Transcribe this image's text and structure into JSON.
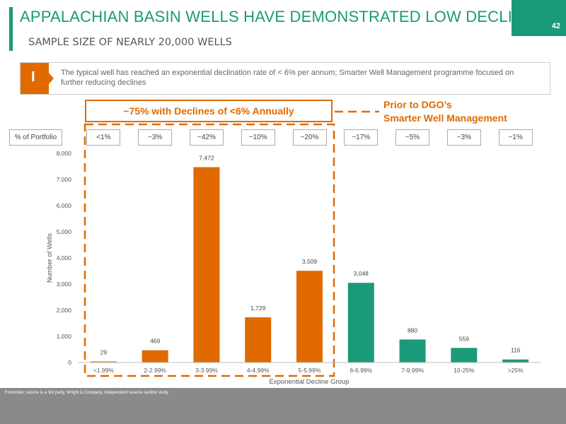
{
  "header": {
    "title": "APPALACHIAN BASIN WELLS HAVE DEMONSTRATED LOW DECLINES",
    "subtitle": "SAMPLE SIZE OF NEARLY 20,000 WELLS"
  },
  "callout": {
    "marker": "I",
    "text": "The typical well has reached an exponential declination rate of < 6% per annum; Smarter Well Management programme focused on further reducing declines"
  },
  "annotations": {
    "decline_box": "~75% with Declines of <6% Annually",
    "prior_line1": "Prior to DGO’s",
    "prior_line2": "Smarter Well Management"
  },
  "portfolio": {
    "label": "% of Portfolio",
    "values": [
      "<1%",
      "~3%",
      "~42%",
      "~10%",
      "~20%",
      "~17%",
      "~5%",
      "~3%",
      "~1%"
    ]
  },
  "colors": {
    "accent_green": "#1a9a78",
    "accent_orange": "#e06a00",
    "footer_grey": "#8a8a8a"
  },
  "chart_data": {
    "type": "bar",
    "categories": [
      "<1.99%",
      "2-2.99%",
      "3-3.99%",
      "4-4.99%",
      "5-5.99%",
      "6-6.99%",
      "7-9.99%",
      "10-25%",
      ">25%"
    ],
    "values": [
      29,
      469,
      7472,
      1729,
      3509,
      3048,
      880,
      559,
      116
    ],
    "value_labels": [
      "29",
      "469",
      "7,472",
      "1,729",
      "3,509",
      "3,048",
      "880",
      "559",
      "116"
    ],
    "bar_colors": [
      "#e06a00",
      "#e06a00",
      "#e06a00",
      "#e06a00",
      "#e06a00",
      "#1a9a78",
      "#1a9a78",
      "#1a9a78",
      "#1a9a78"
    ],
    "xlabel": "Exponential Decline Group",
    "ylabel": "Number of Wells",
    "ylim": [
      0,
      8000
    ],
    "yticks": [
      0,
      1000,
      2000,
      3000,
      4000,
      5000,
      6000,
      7000,
      8000
    ],
    "ytick_labels": [
      "0",
      "1,000",
      "2,000",
      "3,000",
      "4,000",
      "5,000",
      "6,000",
      "7,000",
      "8,000"
    ],
    "grid": false,
    "legend": "none"
  },
  "footer": {
    "note": "Footnotes: source is a 3rd party, Wright & Company, independent reserve auditor study",
    "page": "42"
  }
}
